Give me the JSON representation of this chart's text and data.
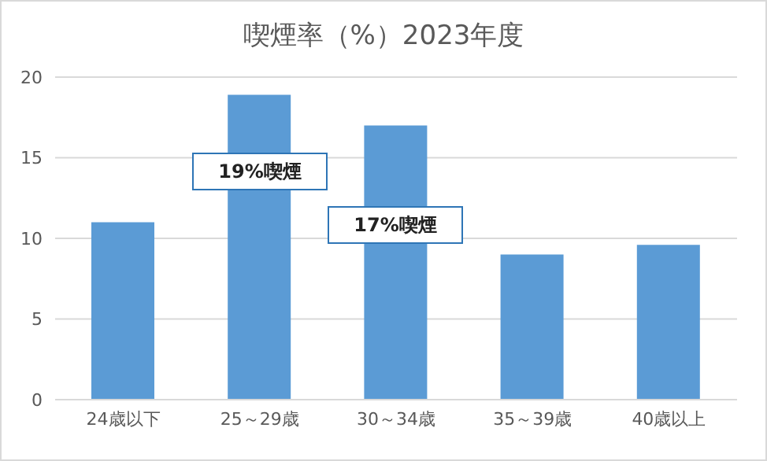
{
  "chart_data": {
    "type": "bar",
    "title": "喫煙率（%）2023年度",
    "categories": [
      "24歳以下",
      "25～29歳",
      "30～34歳",
      "35～39歳",
      "40歳以上"
    ],
    "values": [
      11,
      18.9,
      17,
      9,
      9.6
    ],
    "color": "#5b9bd5",
    "ylim": [
      0,
      20
    ],
    "yticks": [
      0,
      5,
      10,
      15,
      20
    ],
    "grid": "y",
    "legend": false,
    "annotations": [
      "19%喫煙",
      "17%喫煙"
    ]
  }
}
